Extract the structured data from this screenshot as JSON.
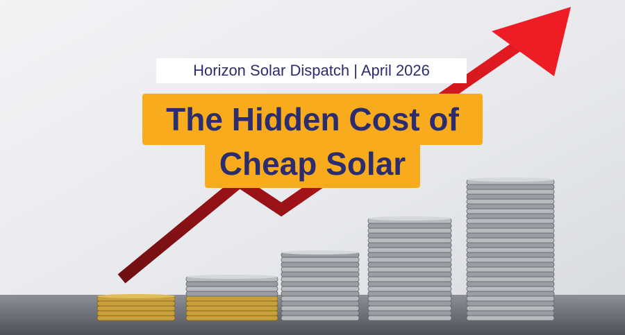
{
  "header": {
    "kicker": "Horizon Solar Dispatch | April 2026",
    "title_lines": [
      "The Hidden Cost of",
      "Cheap Solar"
    ]
  }
}
